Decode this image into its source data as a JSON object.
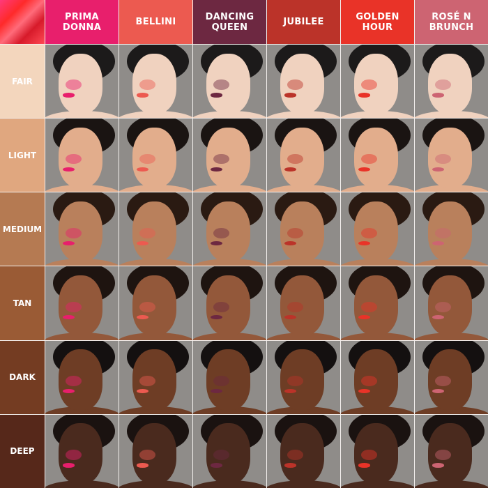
{
  "columns": [
    {
      "label": "PRIMA\nDONNA",
      "color": "#e81f6c"
    },
    {
      "label": "BELLINI",
      "color": "#ec5a50"
    },
    {
      "label": "DANCING\nQUEEN",
      "color": "#6d2841"
    },
    {
      "label": "JUBILEE",
      "color": "#bb3329"
    },
    {
      "label": "GOLDEN\nHOUR",
      "color": "#e93328"
    },
    {
      "label": "ROSÉ N\nBRUNCH",
      "color": "#cd6472"
    }
  ],
  "rows": [
    {
      "label": "FAIR",
      "color": "#f3d6bd",
      "skin": "#f0d2bf",
      "hair": "#1c1a1a"
    },
    {
      "label": "LIGHT",
      "color": "#e0a77f",
      "skin": "#e2ad8c",
      "hair": "#1a1412"
    },
    {
      "label": "MEDIUM",
      "color": "#b57a52",
      "skin": "#b9805c",
      "hair": "#2a1a12"
    },
    {
      "label": "TAN",
      "color": "#9a5b35",
      "skin": "#93583a",
      "hair": "#1e1410"
    },
    {
      "label": "DARK",
      "color": "#743c22",
      "skin": "#6e3d25",
      "hair": "#141010"
    },
    {
      "label": "DEEP",
      "color": "#56281a",
      "skin": "#4a2a1e",
      "hair": "#1a1210"
    }
  ]
}
